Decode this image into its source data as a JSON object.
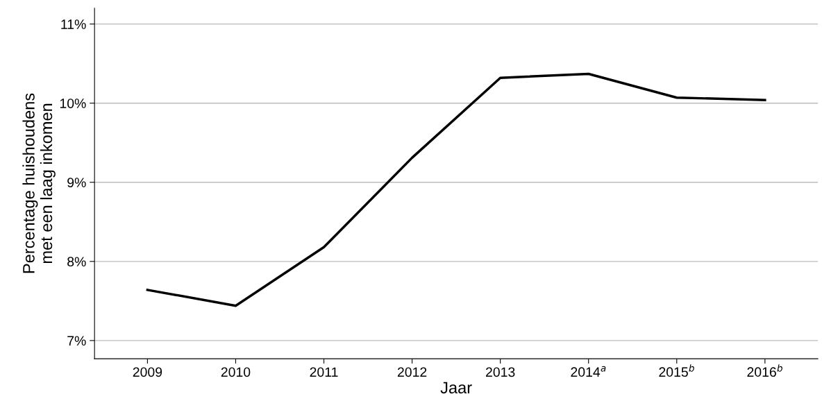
{
  "chart_data": {
    "type": "line",
    "xlabel": "Jaar",
    "ylabel": "Percentage huishoudens\nmet een laag inkomen",
    "categories": [
      "2009",
      "2010",
      "2011",
      "2012",
      "2013",
      "2014$^{a}$",
      "2015$^{b}$",
      "2016$^{b}$"
    ],
    "series": [
      {
        "color": "#000000",
        "values": [
          7.64,
          7.44,
          8.18,
          9.31,
          10.32,
          10.37,
          10.07,
          10.04
        ]
      }
    ],
    "ylim": [
      6.77,
      11.2
    ],
    "yticks": [
      {
        "value": 7,
        "label": "7%"
      },
      {
        "value": 8,
        "label": "8%"
      },
      {
        "value": 9,
        "label": "9%"
      },
      {
        "value": 10,
        "label": "10%"
      },
      {
        "value": 11,
        "label": "11%"
      }
    ],
    "grid": "y",
    "legend": false,
    "marker": "none",
    "line_style": "solid"
  }
}
